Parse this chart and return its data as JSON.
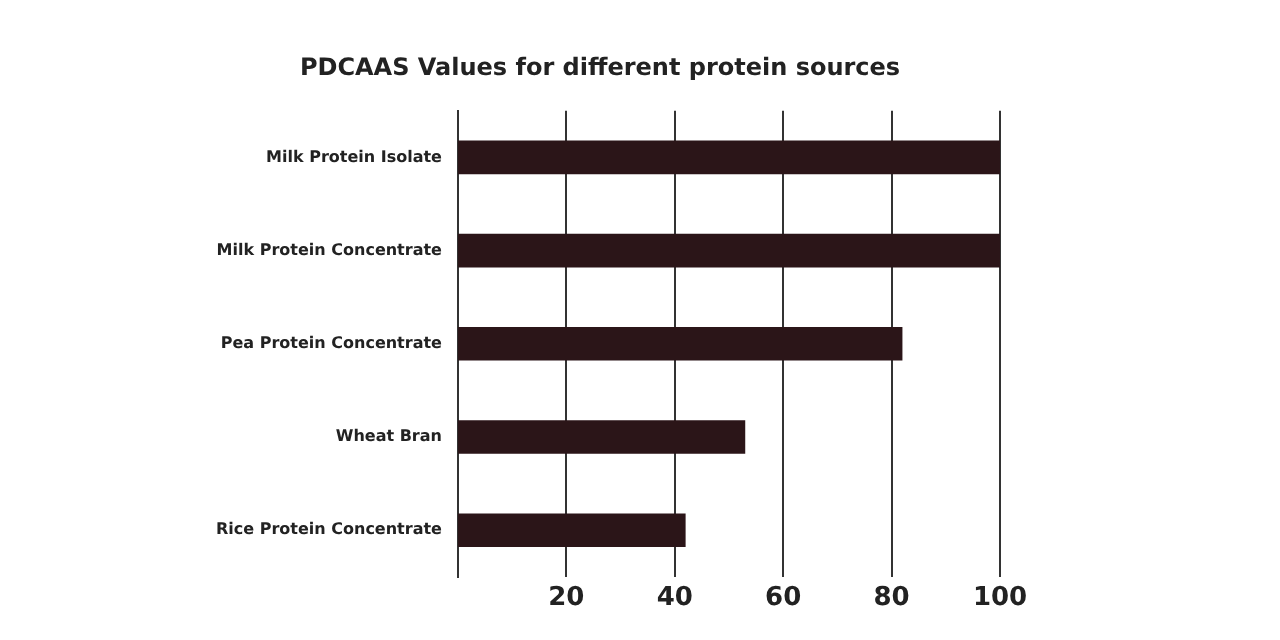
{
  "chart_data": {
    "type": "bar",
    "orientation": "horizontal",
    "title": "PDCAAS Values for different protein sources",
    "categories": [
      "Milk Protein Isolate",
      "Milk Protein Concentrate",
      "Pea Protein Concentrate",
      "Wheat Bran",
      "Rice Protein Concentrate"
    ],
    "values": [
      100,
      100,
      82,
      53,
      42
    ],
    "color": "#2b1518",
    "xlim": [
      0,
      100
    ],
    "xticks": [
      20,
      40,
      60,
      80,
      100
    ],
    "grid": "x",
    "legend": false
  }
}
